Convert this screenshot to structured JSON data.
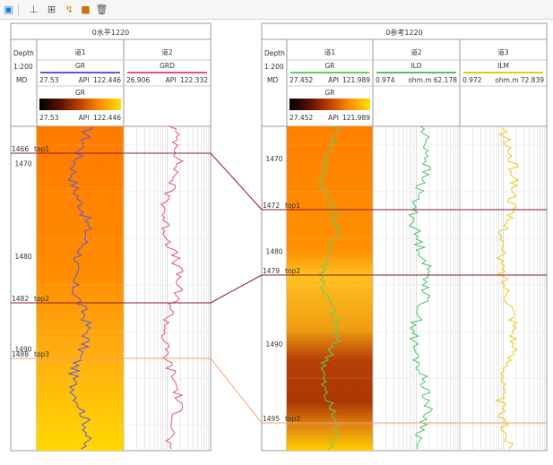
{
  "toolbar": {
    "items": [
      {
        "icon": "select-icon"
      },
      {
        "icon": "tool-a-icon"
      },
      {
        "icon": "tool-b-icon"
      },
      {
        "icon": "tool-c-icon"
      },
      {
        "icon": "fill-color-icon"
      },
      {
        "icon": "delete-icon"
      }
    ]
  },
  "wells": [
    {
      "title": "0水平1220",
      "depth_header": {
        "label": "Depth",
        "scale": "1:200",
        "ref": "MD"
      },
      "tracks": [
        {
          "name": "道1",
          "curve": "GR",
          "curve_color": "#5a5ae0",
          "min": "27.53",
          "unit": "API",
          "max": "122.446",
          "colorbar": {
            "label": "GR",
            "min": "27.53",
            "unit": "API",
            "max": "122.446"
          }
        },
        {
          "name": "道2",
          "curve": "GRD",
          "curve_color": "#e0508c",
          "min": "26.906",
          "unit": "API",
          "max": "122.332"
        }
      ],
      "depth_ticks": [
        "1470",
        "1480",
        "1490"
      ],
      "tops": [
        {
          "depth_text": "1466",
          "name": "top1",
          "color": "#8b1a3a"
        },
        {
          "depth_text": "1482",
          "name": "top2",
          "color": "#8b1a3a"
        },
        {
          "depth_text": "1488",
          "name": "top3",
          "color": "#f0a070"
        }
      ]
    },
    {
      "title": "0参考1220",
      "depth_header": {
        "label": "Depth",
        "scale": "1:200",
        "ref": "MD"
      },
      "tracks": [
        {
          "name": "道1",
          "curve": "GR",
          "curve_color": "#60d060",
          "min": "27.452",
          "unit": "API",
          "max": "121.989",
          "colorbar": {
            "label": "GR",
            "min": "27.452",
            "unit": "API",
            "max": "121.989"
          }
        },
        {
          "name": "道2",
          "curve": "ILD",
          "curve_color": "#50c070",
          "min": "0.974",
          "unit": "ohm.m",
          "max": "62.178"
        },
        {
          "name": "道3",
          "curve": "ILM",
          "curve_color": "#e8c820",
          "min": "0.972",
          "unit": "ohm.m",
          "max": "72.839"
        }
      ],
      "depth_ticks": [
        "1470",
        "1480",
        "1490"
      ],
      "tops": [
        {
          "depth_text": "1472",
          "name": "top1",
          "color": "#8b1a3a"
        },
        {
          "depth_text": "1479",
          "name": "top2",
          "color": "#8b1a3a"
        },
        {
          "depth_text": "1495",
          "name": "top3",
          "color": "#f0a070"
        }
      ]
    }
  ]
}
